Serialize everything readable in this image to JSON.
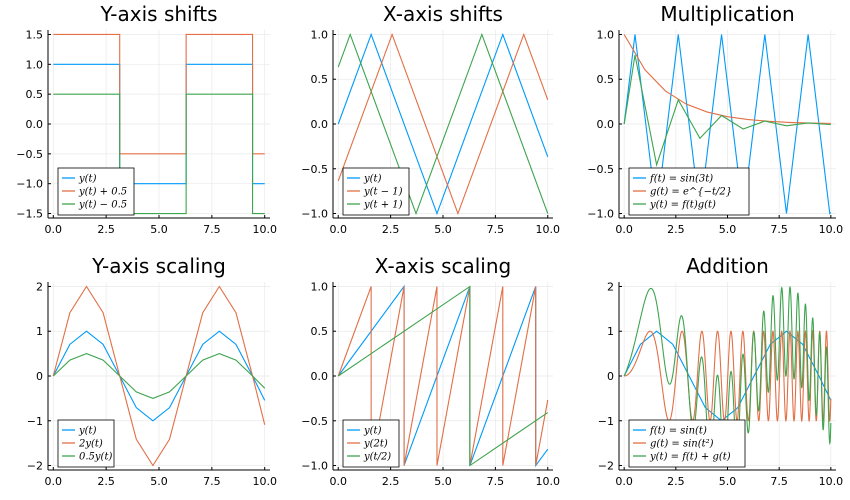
{
  "colors": {
    "blue": "#009AFA",
    "orange": "#E26F46",
    "green": "#3EA44E"
  },
  "chart_data": [
    {
      "type": "line",
      "title": "Y-axis shifts",
      "xlim": [
        0,
        10
      ],
      "ylim": [
        -1.5,
        1.5
      ],
      "xticks": [
        0,
        2.5,
        5,
        7.5,
        10
      ],
      "xtick_labels": [
        "0.0",
        "2.5",
        "5.0",
        "7.5",
        "10.0"
      ],
      "yticks": [
        -1.5,
        -1,
        -0.5,
        0,
        0.5,
        1,
        1.5
      ],
      "ytick_labels": [
        "−1.5",
        "−1.0",
        "−0.5",
        "0.0",
        "0.5",
        "1.0",
        "1.5"
      ],
      "grid": true,
      "legend_position": "bottom-left",
      "series": [
        {
          "name": "y(t)",
          "color": "#009AFA",
          "x": [
            0,
            3.1416,
            3.1416,
            6.2832,
            6.2832,
            9.4248,
            9.4248,
            10
          ],
          "y": [
            1,
            1,
            -1,
            -1,
            1,
            1,
            -1,
            -1
          ]
        },
        {
          "name": "y(t) + 0.5",
          "color": "#E26F46",
          "x": [
            0,
            3.1416,
            3.1416,
            6.2832,
            6.2832,
            9.4248,
            9.4248,
            10
          ],
          "y": [
            1.5,
            1.5,
            -0.5,
            -0.5,
            1.5,
            1.5,
            -0.5,
            -0.5
          ]
        },
        {
          "name": "y(t) − 0.5",
          "color": "#3EA44E",
          "x": [
            0,
            3.1416,
            3.1416,
            6.2832,
            6.2832,
            9.4248,
            9.4248,
            10
          ],
          "y": [
            0.5,
            0.5,
            -1.5,
            -1.5,
            0.5,
            0.5,
            -1.5,
            -1.5
          ]
        }
      ]
    },
    {
      "type": "line",
      "title": "X-axis shifts",
      "xlim": [
        0,
        10
      ],
      "ylim": [
        -1,
        1
      ],
      "xticks": [
        0,
        2.5,
        5,
        7.5,
        10
      ],
      "xtick_labels": [
        "0.0",
        "2.5",
        "5.0",
        "7.5",
        "10.0"
      ],
      "yticks": [
        -1,
        -0.5,
        0,
        0.5,
        1
      ],
      "ytick_labels": [
        "−1.0",
        "−0.5",
        "0.0",
        "0.5",
        "1.0"
      ],
      "grid": true,
      "legend_position": "bottom-left",
      "series": [
        {
          "name": "y(t)",
          "color": "#009AFA",
          "x": [
            0,
            1.5708,
            4.7124,
            7.854,
            10
          ],
          "y": [
            0,
            1,
            -1,
            1,
            -0.367
          ]
        },
        {
          "name": "y(t − 1)",
          "color": "#E26F46",
          "x": [
            0,
            2.5708,
            5.7124,
            8.854,
            10
          ],
          "y": [
            -0.636,
            1,
            -1,
            1,
            0.27
          ]
        },
        {
          "name": "y(t + 1)",
          "color": "#3EA44E",
          "x": [
            0,
            0.5708,
            3.7124,
            6.854,
            10
          ],
          "y": [
            0.636,
            1,
            -1,
            1,
            -1
          ]
        }
      ]
    },
    {
      "type": "line",
      "title": "Multiplication",
      "xlim": [
        0,
        10
      ],
      "ylim": [
        -1,
        1
      ],
      "xticks": [
        0,
        2.5,
        5,
        7.5,
        10
      ],
      "xtick_labels": [
        "0.0",
        "2.5",
        "5.0",
        "7.5",
        "10.0"
      ],
      "yticks": [
        -1,
        -0.5,
        0,
        0.5,
        1
      ],
      "ytick_labels": [
        "−1.0",
        "−0.5",
        "0.0",
        "0.5",
        "1.0"
      ],
      "grid": true,
      "legend_position": "bottom-left",
      "series": [
        {
          "name": "f(t) = sin(3t)",
          "color": "#009AFA",
          "x": [
            0,
            0.5236,
            1.5708,
            2.618,
            3.6652,
            4.7124,
            5.7596,
            6.8068,
            7.854,
            8.9012,
            9.9484,
            10
          ],
          "y": [
            0,
            1,
            -1,
            1,
            -1,
            1,
            -1,
            1,
            -1,
            1,
            -1,
            -0.988
          ]
        },
        {
          "name": "g(t) = e^{−t/2}",
          "color": "#E26F46",
          "x": [
            0,
            1,
            2,
            3,
            4,
            5,
            6,
            7,
            8,
            9,
            10
          ],
          "y": [
            1,
            0.607,
            0.368,
            0.223,
            0.135,
            0.082,
            0.05,
            0.03,
            0.018,
            0.011,
            0.007
          ]
        },
        {
          "name": "y(t) = f(t)g(t)",
          "color": "#3EA44E",
          "x": [
            0,
            0.5236,
            1.5708,
            2.618,
            3.6652,
            4.7124,
            5.7596,
            6.8068,
            7.854,
            8.9012,
            10
          ],
          "y": [
            0,
            0.77,
            -0.456,
            0.27,
            -0.16,
            0.095,
            -0.056,
            0.033,
            -0.02,
            0.012,
            -0.007
          ]
        }
      ]
    },
    {
      "type": "line",
      "title": "Y-axis scaling",
      "xlim": [
        0,
        10
      ],
      "ylim": [
        -2,
        2
      ],
      "xticks": [
        0,
        2.5,
        5,
        7.5,
        10
      ],
      "xtick_labels": [
        "0.0",
        "2.5",
        "5.0",
        "7.5",
        "10.0"
      ],
      "yticks": [
        -2,
        -1,
        0,
        1,
        2
      ],
      "ytick_labels": [
        "−2",
        "−1",
        "0",
        "1",
        "2"
      ],
      "grid": true,
      "legend_position": "bottom-left",
      "series": [
        {
          "name": "y(t)",
          "color": "#009AFA",
          "x": [
            0,
            0.785,
            1.571,
            2.356,
            3.142,
            3.927,
            4.712,
            5.498,
            6.283,
            7.069,
            7.854,
            8.639,
            9.425,
            10
          ],
          "y": [
            0,
            0.707,
            1,
            0.707,
            0,
            -0.707,
            -1,
            -0.707,
            0,
            0.707,
            1,
            0.707,
            0,
            -0.544
          ]
        },
        {
          "name": "2y(t)",
          "color": "#E26F46",
          "x": [
            0,
            0.785,
            1.571,
            2.356,
            3.142,
            3.927,
            4.712,
            5.498,
            6.283,
            7.069,
            7.854,
            8.639,
            9.425,
            10
          ],
          "y": [
            0,
            1.414,
            2,
            1.414,
            0,
            -1.414,
            -2,
            -1.414,
            0,
            1.414,
            2,
            1.414,
            0,
            -1.088
          ]
        },
        {
          "name": "0.5y(t)",
          "color": "#3EA44E",
          "x": [
            0,
            0.785,
            1.571,
            2.356,
            3.142,
            3.927,
            4.712,
            5.498,
            6.283,
            7.069,
            7.854,
            8.639,
            9.425,
            10
          ],
          "y": [
            0,
            0.354,
            0.5,
            0.354,
            0,
            -0.354,
            -0.5,
            -0.354,
            0,
            0.354,
            0.5,
            0.354,
            0,
            -0.272
          ]
        }
      ]
    },
    {
      "type": "line",
      "title": "X-axis scaling",
      "xlim": [
        0,
        10
      ],
      "ylim": [
        -1,
        1
      ],
      "xticks": [
        0,
        2.5,
        5,
        7.5,
        10
      ],
      "xtick_labels": [
        "0.0",
        "2.5",
        "5.0",
        "7.5",
        "10.0"
      ],
      "yticks": [
        -1,
        -0.5,
        0,
        0.5,
        1
      ],
      "ytick_labels": [
        "−1.0",
        "−0.5",
        "0.0",
        "0.5",
        "1.0"
      ],
      "grid": true,
      "legend_position": "bottom-left",
      "series": [
        {
          "name": "y(t)",
          "color": "#009AFA",
          "x": [
            0,
            3.1416,
            3.1416,
            6.2832,
            6.2832,
            9.4248,
            9.4248,
            10
          ],
          "y": [
            0,
            1,
            -1,
            1,
            -1,
            1,
            -1,
            -0.817
          ]
        },
        {
          "name": "y(2t)",
          "color": "#E26F46",
          "x": [
            0,
            1.5708,
            1.5708,
            3.1416,
            3.1416,
            4.7124,
            4.7124,
            6.2832,
            6.2832,
            7.854,
            7.854,
            9.4248,
            9.4248,
            10
          ],
          "y": [
            0,
            1,
            -1,
            1,
            -1,
            1,
            -1,
            1,
            -1,
            1,
            -1,
            1,
            -1,
            -0.268
          ]
        },
        {
          "name": "y(t/2)",
          "color": "#3EA44E",
          "x": [
            0,
            6.2832,
            6.2832,
            10
          ],
          "y": [
            0,
            1,
            -1,
            -0.408
          ]
        }
      ]
    },
    {
      "type": "line",
      "title": "Addition",
      "xlim": [
        0,
        10
      ],
      "ylim": [
        -2,
        2
      ],
      "xticks": [
        0,
        2.5,
        5,
        7.5,
        10
      ],
      "xtick_labels": [
        "0.0",
        "2.5",
        "5.0",
        "7.5",
        "10.0"
      ],
      "yticks": [
        -2,
        -1,
        0,
        1,
        2
      ],
      "ytick_labels": [
        "−2",
        "−1",
        "0",
        "1",
        "2"
      ],
      "grid": true,
      "legend_position": "bottom-left",
      "series": [
        {
          "name": "f(t) = sin(t)",
          "color": "#009AFA",
          "x": [
            0,
            0.785,
            1.571,
            2.356,
            3.142,
            3.927,
            4.712,
            5.498,
            6.283,
            7.069,
            7.854,
            8.639,
            9.425,
            10
          ],
          "y": [
            0,
            0.707,
            1,
            0.707,
            0,
            -0.707,
            -1,
            -0.707,
            0,
            0.707,
            1,
            0.707,
            0,
            -0.544
          ]
        },
        {
          "name": "g(t) = sin(t²)",
          "color": "#E26F46",
          "func": "sin(t^2)"
        },
        {
          "name": "y(t) = f(t) + g(t)",
          "color": "#3EA44E",
          "func": "sin(t)+sin(t^2)"
        }
      ]
    }
  ]
}
